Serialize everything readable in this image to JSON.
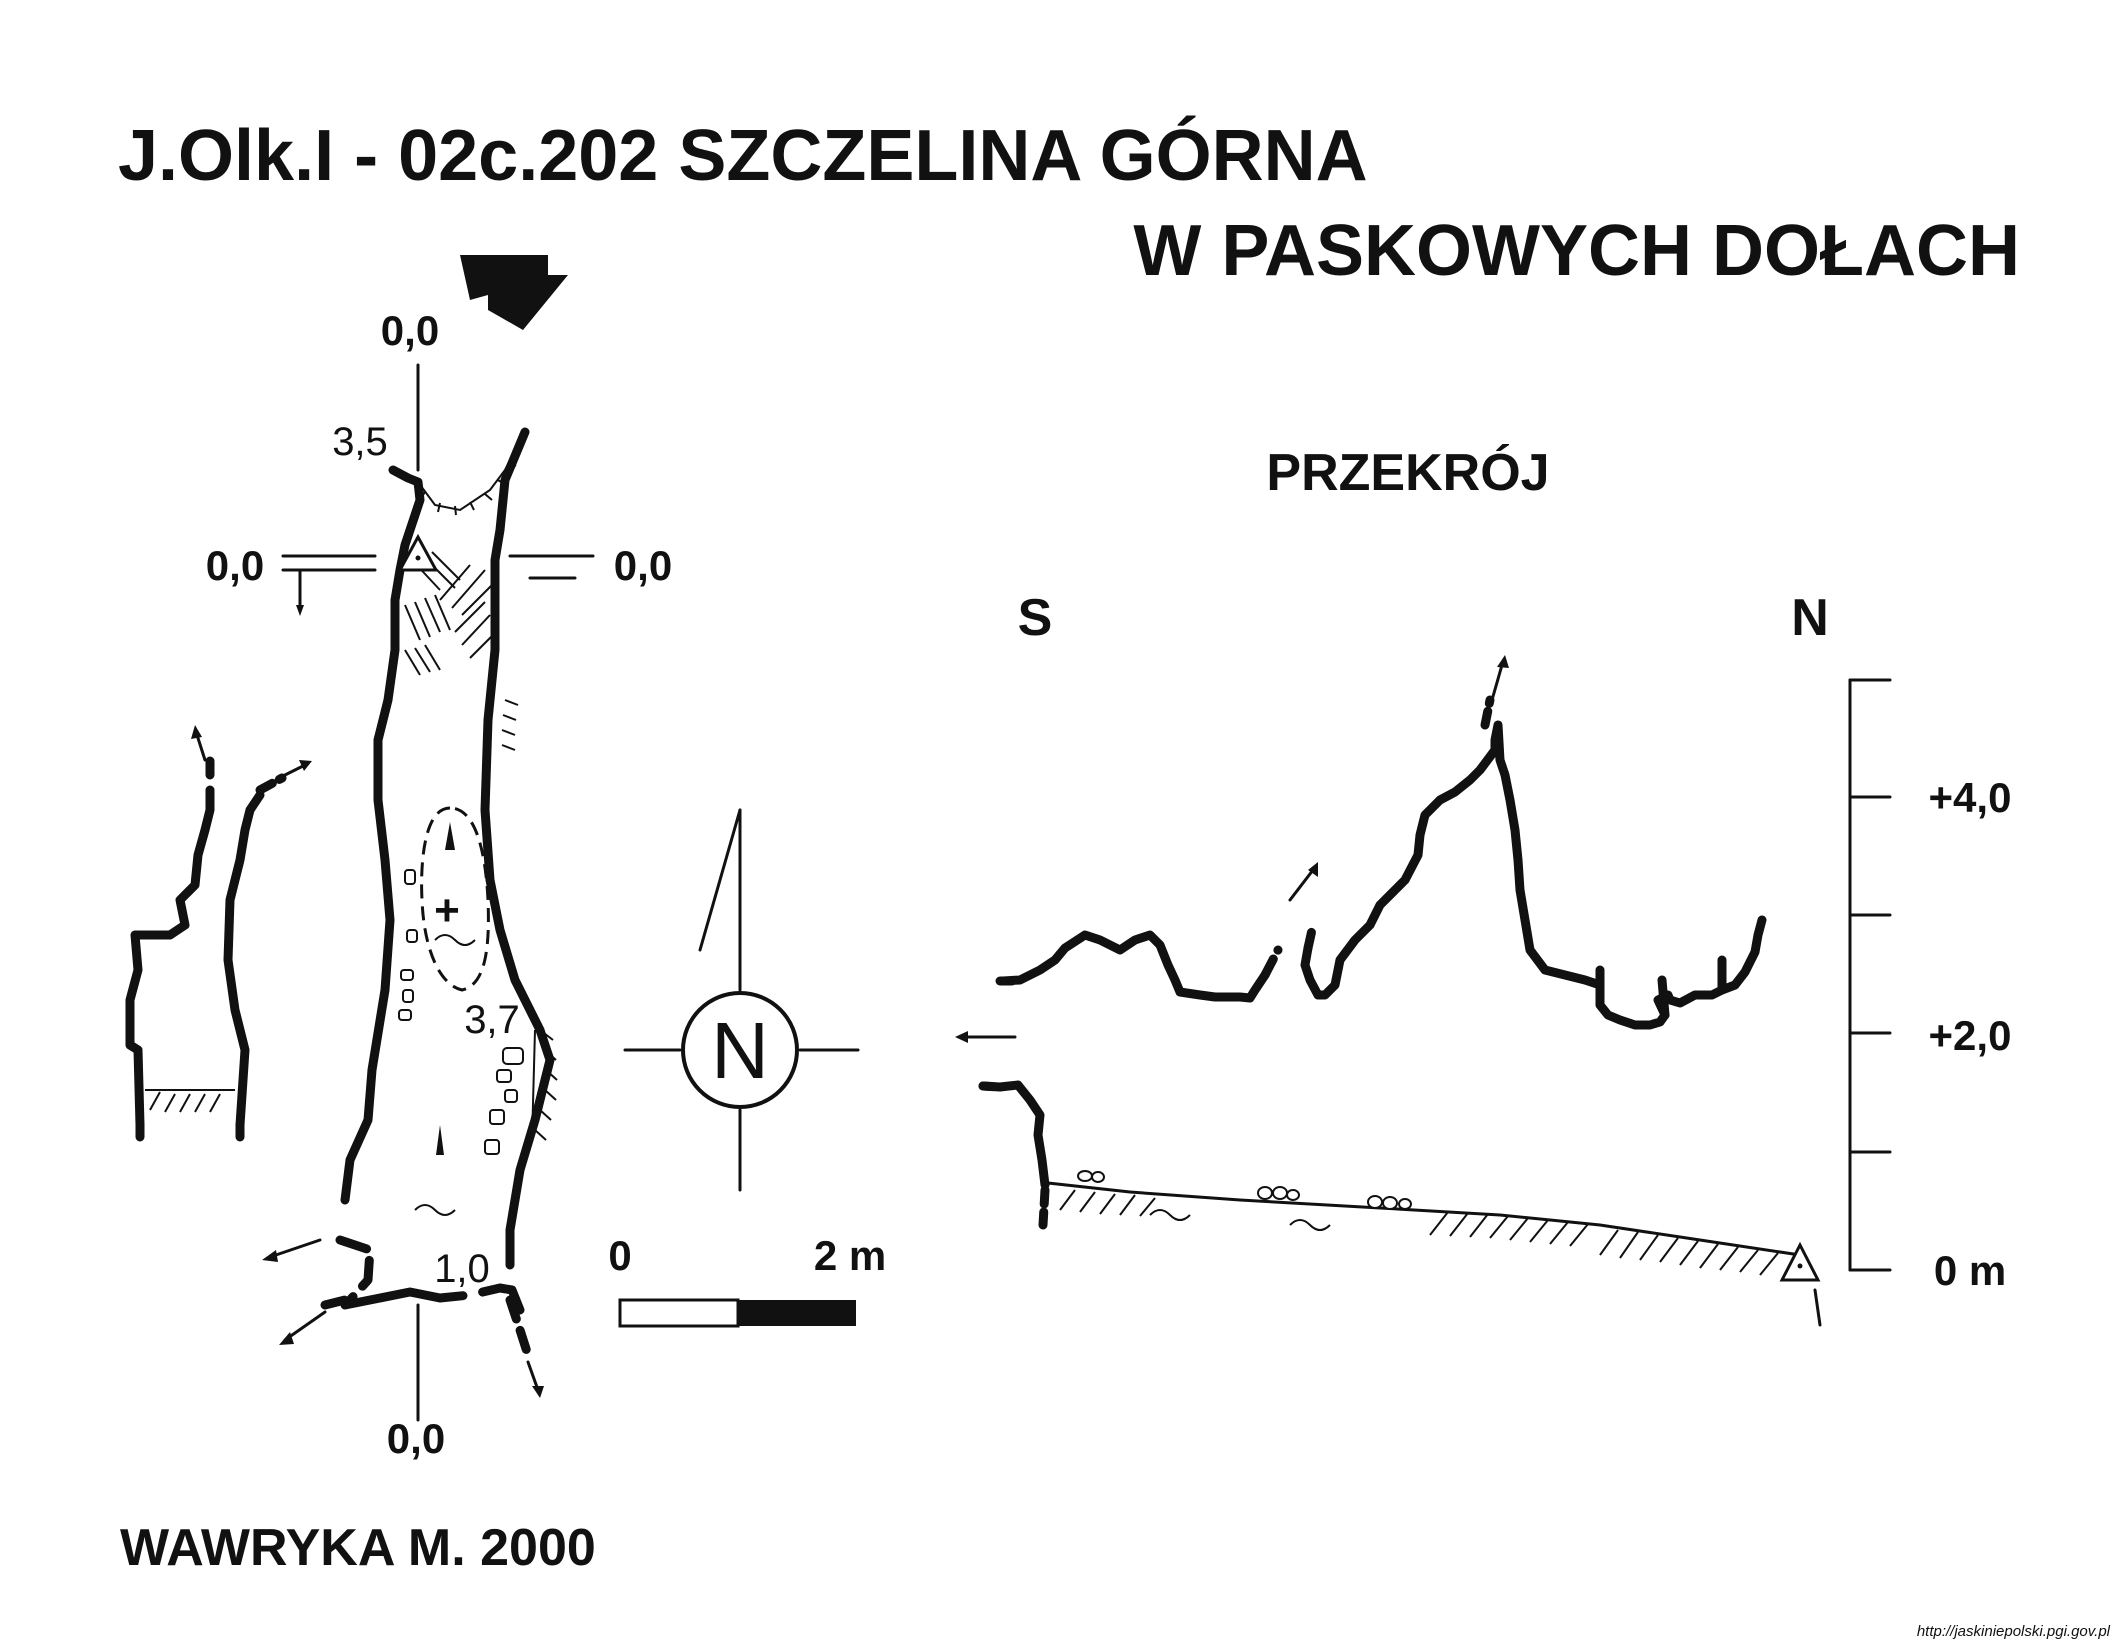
{
  "title": {
    "line1": "J.Olk.I - 02c.202  SZCZELINA GÓRNA",
    "line2": "W PASKOWYCH DOŁACH"
  },
  "plan": {
    "markers": {
      "top": "0,0",
      "left": "0,0",
      "right": "0,0",
      "bottom": "0,0"
    },
    "heights": [
      "3,5",
      "3,7",
      "1,0"
    ]
  },
  "compass": {
    "label": "N"
  },
  "scale_bar": {
    "start": "0",
    "end": "2 m"
  },
  "section": {
    "title": "PRZEKRÓJ",
    "left_dir": "S",
    "right_dir": "N",
    "ticks": [
      "+4,0",
      "+2,0",
      "0 m"
    ]
  },
  "author": "WAWRYKA M. 2000",
  "source_url": "http://jaskiniepolski.pgi.gov.pl"
}
